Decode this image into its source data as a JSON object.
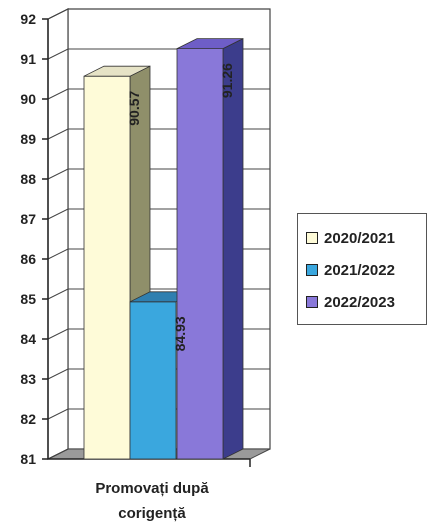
{
  "chart_data": {
    "type": "bar",
    "categories": [
      "Promovați după corigență"
    ],
    "series": [
      {
        "name": "2020/2021",
        "values": [
          90.57
        ],
        "label": "90.57",
        "color": "#fefbd8"
      },
      {
        "name": "2021/2022",
        "values": [
          84.93
        ],
        "label": "84.93",
        "color": "#3aa7de"
      },
      {
        "name": "2022/2023",
        "values": [
          91.26
        ],
        "label": "91.26",
        "color": "#8978d9"
      }
    ],
    "yticks": [
      "81",
      "82",
      "83",
      "84",
      "85",
      "86",
      "87",
      "88",
      "89",
      "90",
      "91",
      "92"
    ],
    "ylim": [
      81,
      92
    ],
    "grid": true,
    "legend": "right",
    "category_label_lines": [
      "Promovați după",
      "corigență"
    ]
  }
}
